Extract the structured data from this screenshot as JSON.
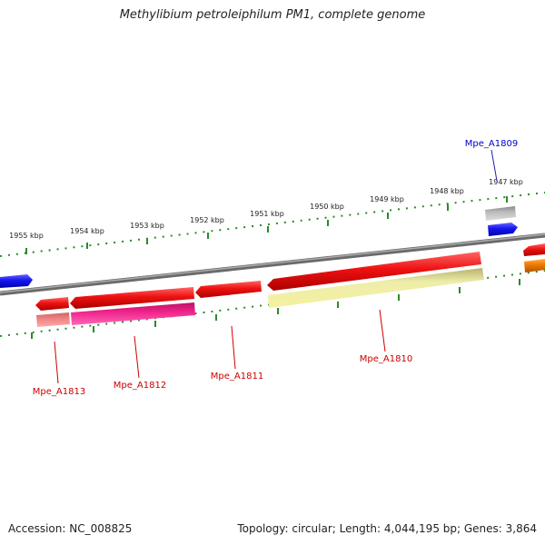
{
  "title": "Methylibium petroleiphilum PM1, complete genome",
  "footer": {
    "accession": "Accession: NC_008825",
    "stats": "Topology: circular; Length: 4,044,195 bp; Genes: 3,864"
  },
  "ruler_labels": [
    "1955 kbp",
    "1954 kbp",
    "1953 kbp",
    "1952 kbp",
    "1951 kbp",
    "1950 kbp",
    "1949 kbp",
    "1948 kbp",
    "1947 kbp"
  ],
  "genes": [
    {
      "label": "Mpe_A1809",
      "color": "#0000cc"
    },
    {
      "label": "Mpe_A1810",
      "color": "#cc0000"
    },
    {
      "label": "Mpe_A1811",
      "color": "#cc0000"
    },
    {
      "label": "Mpe_A1812",
      "color": "#cc0000"
    },
    {
      "label": "Mpe_A1813",
      "color": "#cc0000"
    }
  ],
  "colors": {
    "backbone": "#808080",
    "ruler": "#2a8a2a",
    "cds_red": "#ee1111",
    "cds_blue": "#1515ee",
    "cds_orange": "#ee7700",
    "feature_pink": "#ee2288",
    "feature_salmon": "#ee8080",
    "feature_yellow": "#eeee99",
    "feature_grey": "#aaaaaa"
  }
}
